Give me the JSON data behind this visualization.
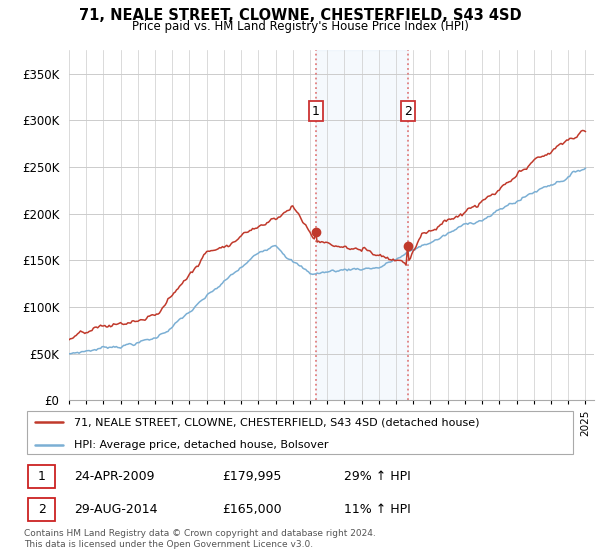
{
  "title": "71, NEALE STREET, CLOWNE, CHESTERFIELD, S43 4SD",
  "subtitle": "Price paid vs. HM Land Registry's House Price Index (HPI)",
  "ylabel_ticks": [
    "£0",
    "£50K",
    "£100K",
    "£150K",
    "£200K",
    "£250K",
    "£300K",
    "£350K"
  ],
  "ytick_values": [
    0,
    50000,
    100000,
    150000,
    200000,
    250000,
    300000,
    350000
  ],
  "ylim": [
    0,
    375000
  ],
  "hpi_color": "#7bafd4",
  "price_color": "#c0392b",
  "shade_color": "#ddeeff",
  "sale1": {
    "label": "1",
    "date": "24-APR-2009",
    "price": "£179,995",
    "hpi": "29% ↑ HPI",
    "value": 179995,
    "year": 2009.33
  },
  "sale2": {
    "label": "2",
    "date": "29-AUG-2014",
    "price": "£165,000",
    "hpi": "11% ↑ HPI",
    "value": 165000,
    "year": 2014.67
  },
  "legend_line1": "71, NEALE STREET, CLOWNE, CHESTERFIELD, S43 4SD (detached house)",
  "legend_line2": "HPI: Average price, detached house, Bolsover",
  "footer": "Contains HM Land Registry data © Crown copyright and database right 2024.\nThis data is licensed under the Open Government Licence v3.0.",
  "background_color": "#ffffff",
  "grid_color": "#cccccc",
  "xlim_start": 1995,
  "xlim_end": 2025.5
}
